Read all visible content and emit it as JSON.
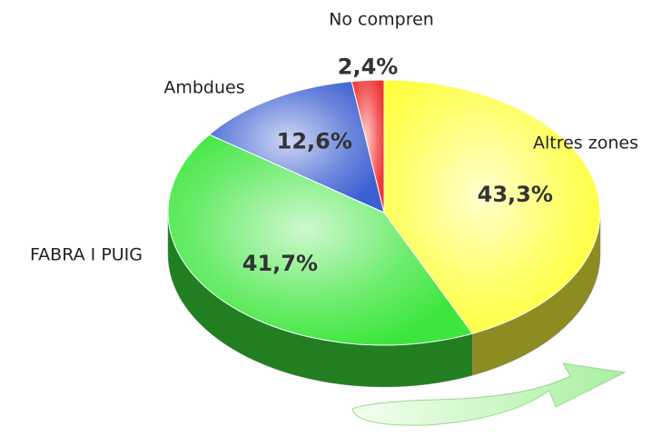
{
  "chart_data": {
    "type": "pie",
    "categories": [
      "Altres zones",
      "FABRA I PUIG",
      "Ambdues",
      "No compren"
    ],
    "values": [
      43.3,
      41.7,
      12.6,
      2.4
    ],
    "value_labels": [
      "43,3%",
      "41,7%",
      "12,6%",
      "2,4%"
    ],
    "colors": [
      "#ffff3c",
      "#3ce63c",
      "#3c5fd2",
      "#f03232"
    ]
  }
}
